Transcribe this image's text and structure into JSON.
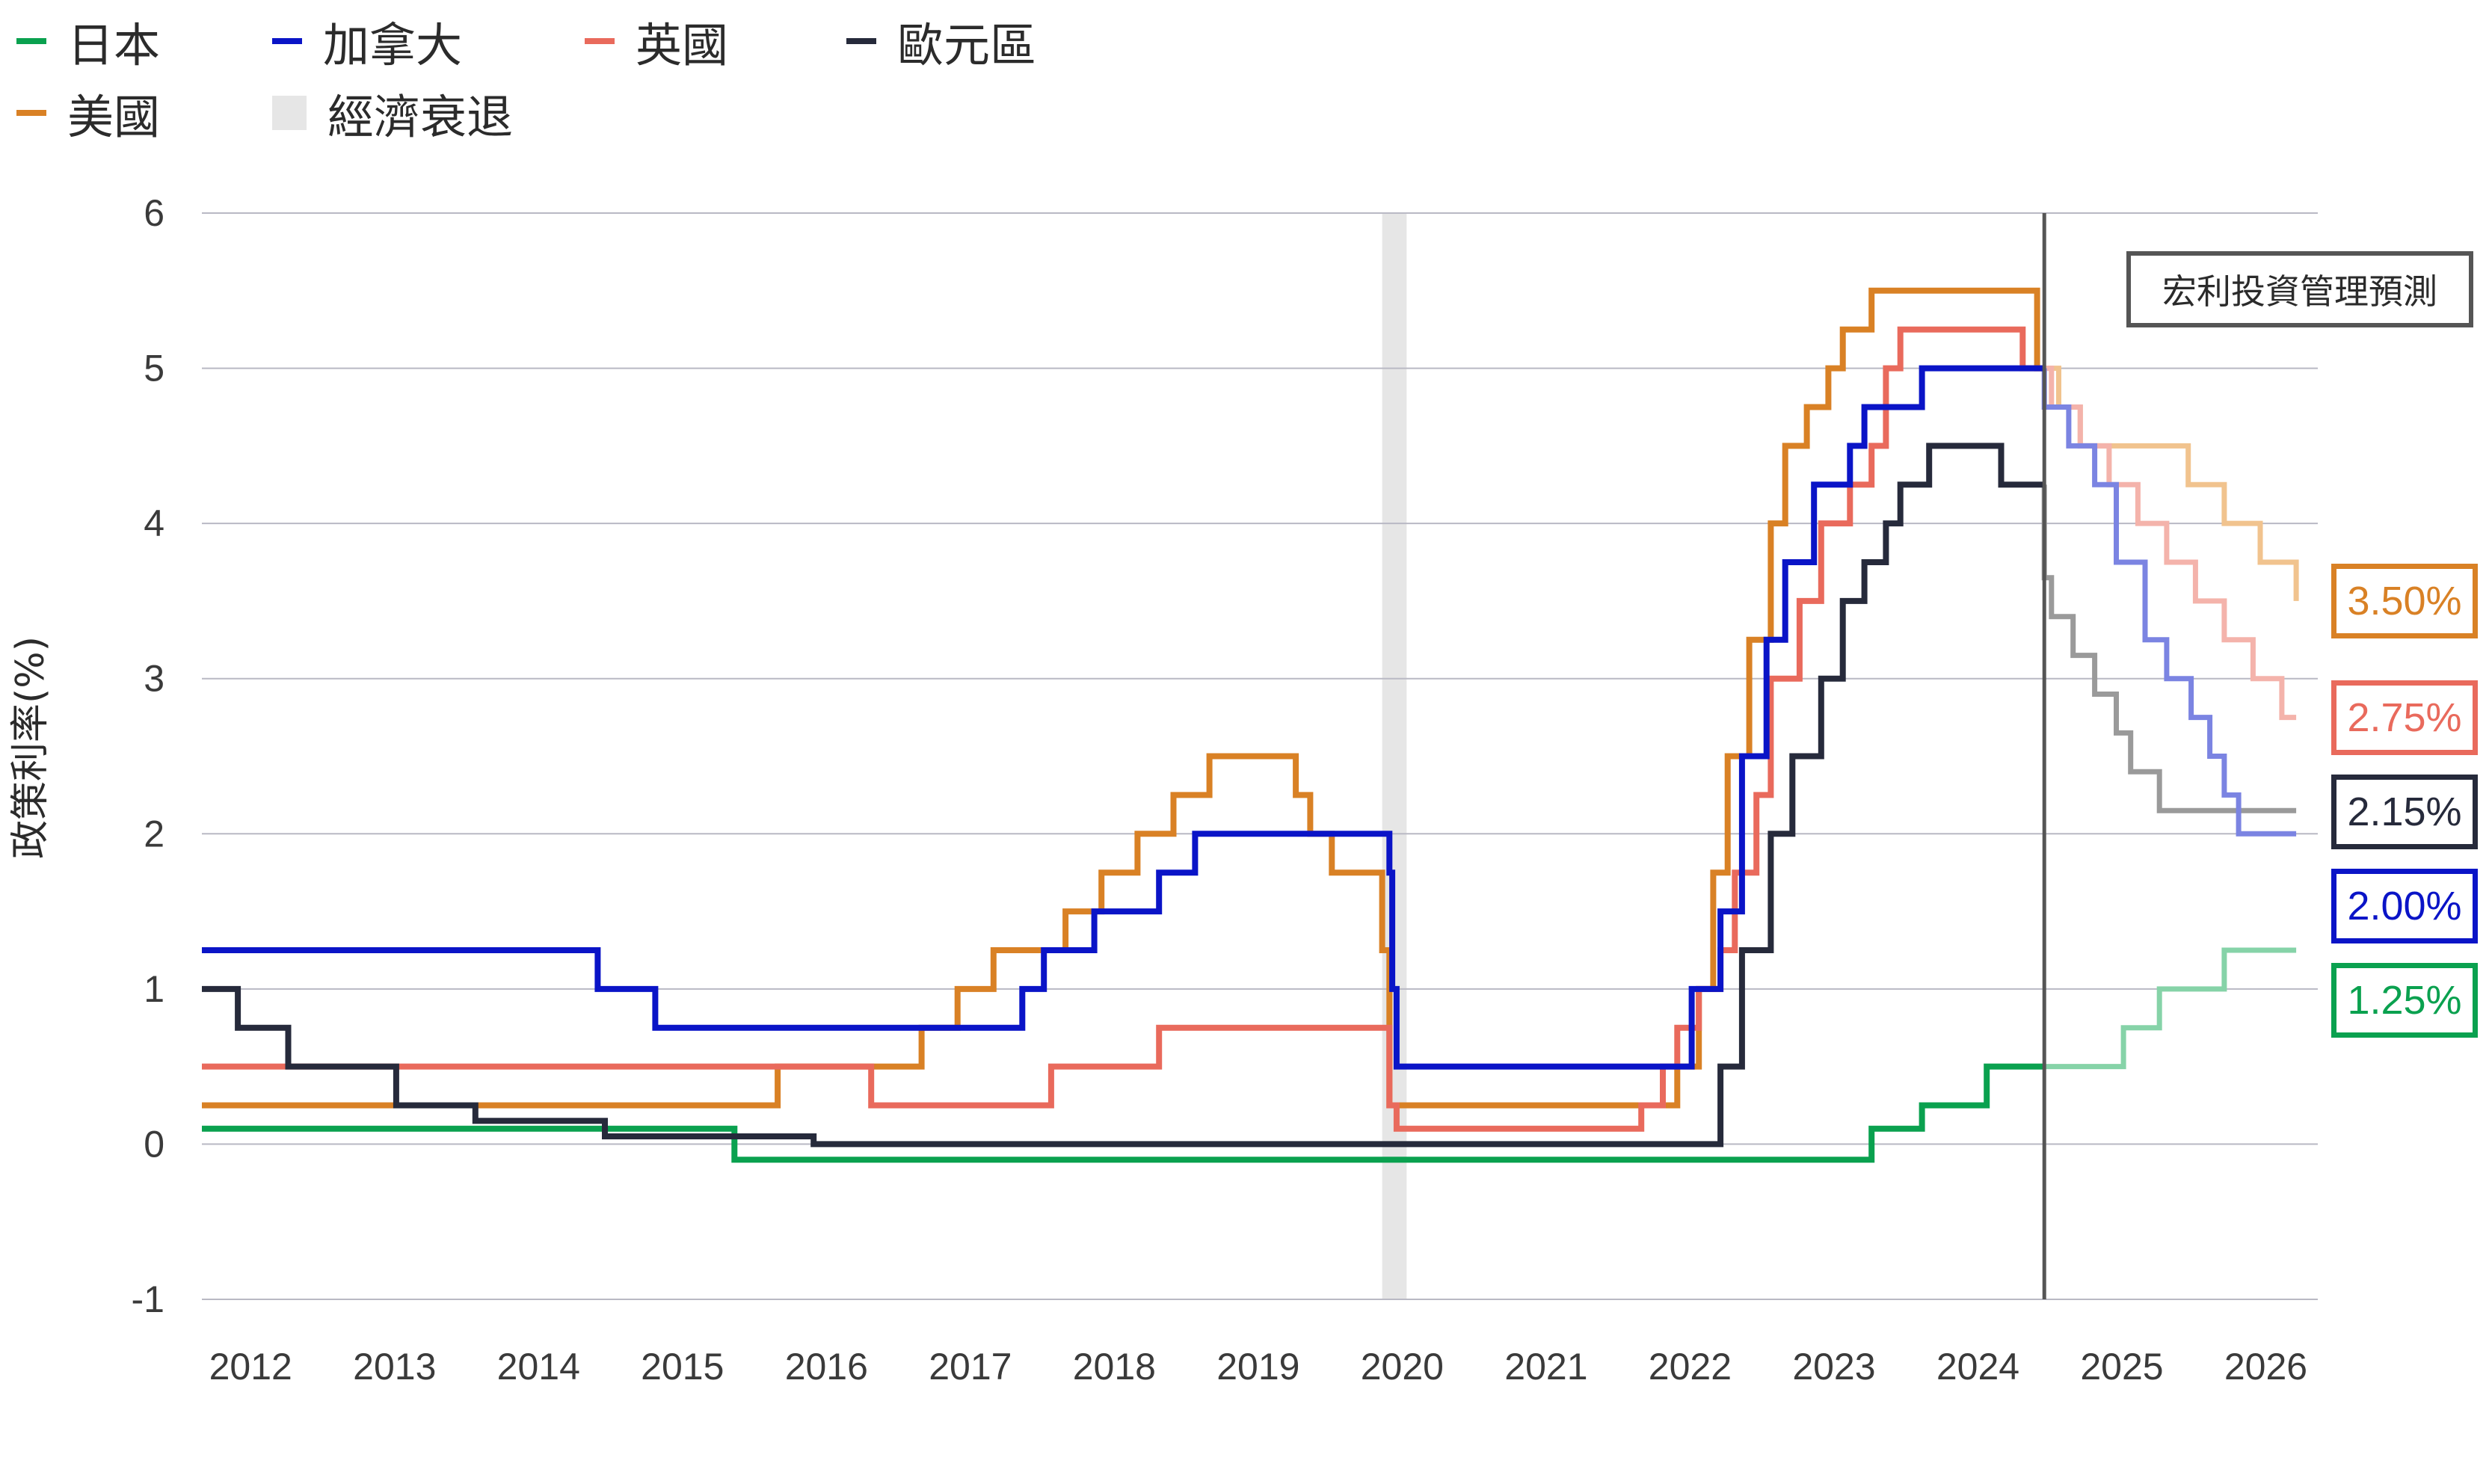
{
  "chart_data": {
    "type": "line",
    "ylabel": "政策利率(%)",
    "ylim": [
      -1,
      6
    ],
    "yticks": [
      -1,
      0,
      1,
      2,
      3,
      4,
      5,
      6
    ],
    "xlim": [
      2011.95,
      2026.65
    ],
    "xticks": [
      "2012",
      "2013",
      "2014",
      "2015",
      "2016",
      "2017",
      "2018",
      "2019",
      "2020",
      "2021",
      "2022",
      "2023",
      "2024",
      "2025",
      "2026"
    ],
    "grid": true,
    "legend_position": "top-left",
    "forecast_start": 2024.75,
    "forecast_label": "宏利投資管理預測",
    "recession": {
      "label": "經濟衰退",
      "start": 2020.15,
      "end": 2020.32,
      "color": "#e6e6e6"
    },
    "series": [
      {
        "name": "日本",
        "color": "#0aa14f",
        "forecast_color": "#86d3a8",
        "end_label": "1.25%",
        "steps": [
          [
            2011.95,
            0.1
          ],
          [
            2015.65,
            -0.1
          ],
          [
            2023.55,
            0.1
          ],
          [
            2023.9,
            0.25
          ],
          [
            2024.35,
            0.5
          ],
          [
            2024.75,
            0.5
          ],
          [
            2025.3,
            0.75
          ],
          [
            2025.55,
            1.0
          ],
          [
            2026.0,
            1.25
          ],
          [
            2026.5,
            1.25
          ]
        ]
      },
      {
        "name": "加拿大",
        "color": "#0a14c7",
        "forecast_color": "#7b84e2",
        "end_label": "2.00%",
        "steps": [
          [
            2011.95,
            1.25
          ],
          [
            2014.7,
            1.0
          ],
          [
            2015.1,
            0.75
          ],
          [
            2016.7,
            0.75
          ],
          [
            2017.65,
            1.0
          ],
          [
            2017.8,
            1.25
          ],
          [
            2018.15,
            1.5
          ],
          [
            2018.6,
            1.75
          ],
          [
            2018.85,
            2.0
          ],
          [
            2020.2,
            1.75
          ],
          [
            2020.22,
            1.0
          ],
          [
            2020.25,
            0.5
          ],
          [
            2022.18,
            0.5
          ],
          [
            2022.3,
            1.0
          ],
          [
            2022.5,
            1.5
          ],
          [
            2022.65,
            2.5
          ],
          [
            2022.82,
            3.25
          ],
          [
            2022.95,
            3.75
          ],
          [
            2023.15,
            4.25
          ],
          [
            2023.4,
            4.5
          ],
          [
            2023.5,
            4.75
          ],
          [
            2023.78,
            4.75
          ],
          [
            2023.9,
            5.0
          ],
          [
            2024.1,
            5.0
          ],
          [
            2024.6,
            5.0
          ],
          [
            2024.75,
            4.75
          ],
          [
            2024.92,
            4.5
          ],
          [
            2025.1,
            4.25
          ],
          [
            2025.25,
            3.75
          ],
          [
            2025.45,
            3.25
          ],
          [
            2025.6,
            3.0
          ],
          [
            2025.77,
            2.75
          ],
          [
            2025.9,
            2.5
          ],
          [
            2026.0,
            2.25
          ],
          [
            2026.1,
            2.0
          ],
          [
            2026.5,
            2.0
          ]
        ]
      },
      {
        "name": "英國",
        "color": "#e96a5c",
        "forecast_color": "#f4b3ab",
        "end_label": "2.75%",
        "steps": [
          [
            2011.95,
            0.5
          ],
          [
            2016.6,
            0.25
          ],
          [
            2017.85,
            0.5
          ],
          [
            2018.6,
            0.75
          ],
          [
            2020.2,
            0.25
          ],
          [
            2020.25,
            0.1
          ],
          [
            2021.95,
            0.25
          ],
          [
            2022.1,
            0.5
          ],
          [
            2022.2,
            0.75
          ],
          [
            2022.35,
            1.0
          ],
          [
            2022.5,
            1.25
          ],
          [
            2022.6,
            1.75
          ],
          [
            2022.75,
            2.25
          ],
          [
            2022.85,
            3.0
          ],
          [
            2023.05,
            3.5
          ],
          [
            2023.2,
            4.0
          ],
          [
            2023.4,
            4.25
          ],
          [
            2023.55,
            4.5
          ],
          [
            2023.65,
            5.0
          ],
          [
            2023.75,
            5.25
          ],
          [
            2024.6,
            5.0
          ],
          [
            2024.8,
            4.75
          ],
          [
            2025.0,
            4.5
          ],
          [
            2025.2,
            4.25
          ],
          [
            2025.4,
            4.0
          ],
          [
            2025.6,
            3.75
          ],
          [
            2025.8,
            3.5
          ],
          [
            2026.0,
            3.25
          ],
          [
            2026.2,
            3.0
          ],
          [
            2026.4,
            2.75
          ]
        ]
      },
      {
        "name": "歐元區",
        "color": "#262a3b",
        "forecast_color": "#9a9a9a",
        "end_label": "2.15%",
        "steps": [
          [
            2011.95,
            1.0
          ],
          [
            2012.2,
            0.75
          ],
          [
            2012.55,
            0.5
          ],
          [
            2013.3,
            0.25
          ],
          [
            2013.85,
            0.15
          ],
          [
            2014.75,
            0.05
          ],
          [
            2016.2,
            0.0
          ],
          [
            2022.5,
            0.5
          ],
          [
            2022.65,
            1.25
          ],
          [
            2022.85,
            2.0
          ],
          [
            2023.0,
            2.5
          ],
          [
            2023.2,
            3.0
          ],
          [
            2023.35,
            3.5
          ],
          [
            2023.5,
            3.75
          ],
          [
            2023.65,
            4.0
          ],
          [
            2023.75,
            4.25
          ],
          [
            2023.95,
            4.5
          ],
          [
            2024.45,
            4.25
          ],
          [
            2024.75,
            3.65
          ],
          [
            2024.8,
            3.4
          ],
          [
            2024.95,
            3.15
          ],
          [
            2025.1,
            2.9
          ],
          [
            2025.25,
            2.65
          ],
          [
            2025.35,
            2.4
          ],
          [
            2025.55,
            2.15
          ],
          [
            2026.5,
            2.15
          ]
        ]
      },
      {
        "name": "美國",
        "color": "#d98125",
        "forecast_color": "#f1c38e",
        "end_label": "3.50%",
        "steps": [
          [
            2011.95,
            0.25
          ],
          [
            2015.95,
            0.5
          ],
          [
            2016.95,
            0.75
          ],
          [
            2017.2,
            1.0
          ],
          [
            2017.45,
            1.25
          ],
          [
            2017.95,
            1.5
          ],
          [
            2018.2,
            1.75
          ],
          [
            2018.45,
            2.0
          ],
          [
            2018.7,
            2.25
          ],
          [
            2018.95,
            2.5
          ],
          [
            2019.55,
            2.25
          ],
          [
            2019.65,
            2.0
          ],
          [
            2019.8,
            1.75
          ],
          [
            2020.15,
            1.25
          ],
          [
            2020.2,
            0.25
          ],
          [
            2022.2,
            0.5
          ],
          [
            2022.35,
            1.0
          ],
          [
            2022.45,
            1.75
          ],
          [
            2022.55,
            2.5
          ],
          [
            2022.7,
            3.25
          ],
          [
            2022.85,
            4.0
          ],
          [
            2022.95,
            4.5
          ],
          [
            2023.1,
            4.75
          ],
          [
            2023.25,
            5.0
          ],
          [
            2023.35,
            5.25
          ],
          [
            2023.55,
            5.5
          ],
          [
            2024.7,
            5.0
          ],
          [
            2024.85,
            4.75
          ],
          [
            2025.0,
            4.5
          ],
          [
            2025.55,
            4.5
          ],
          [
            2025.75,
            4.25
          ],
          [
            2026.0,
            4.0
          ],
          [
            2026.25,
            3.75
          ],
          [
            2026.5,
            3.5
          ]
        ]
      }
    ]
  }
}
